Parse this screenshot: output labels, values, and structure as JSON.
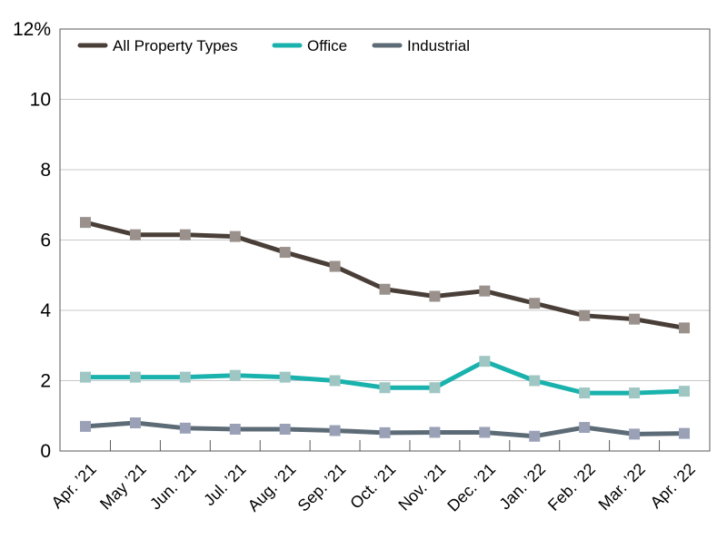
{
  "chart_data": {
    "type": "line",
    "title": "",
    "xlabel": "",
    "ylabel": "",
    "x": [
      "Apr. ’21",
      "May ’21",
      "Jun. ’21",
      "Jul. ’21",
      "Aug. ’21",
      "Sep. ’21",
      "Oct. ’21",
      "Nov. ’21",
      "Dec. ’21",
      "Jan. ’22",
      "Feb. ’22",
      "Mar. ’22",
      "Apr. ’22"
    ],
    "ylim": [
      0,
      12
    ],
    "yticks": [
      0,
      2,
      4,
      6,
      8,
      10,
      12
    ],
    "ytick_labels": [
      "0",
      "2",
      "4",
      "6",
      "8",
      "10",
      "12%"
    ],
    "grid": "horizontal",
    "legend_position": "top-left",
    "series": [
      {
        "name": "All Property Types",
        "color": "#4a3f38",
        "marker_color": "#9a918c",
        "values": [
          6.5,
          6.15,
          6.15,
          6.1,
          5.65,
          5.25,
          4.6,
          4.4,
          4.55,
          4.2,
          3.85,
          3.75,
          3.5
        ]
      },
      {
        "name": "Office",
        "color": "#1ab2ad",
        "marker_color": "#9fc6c3",
        "values": [
          2.1,
          2.1,
          2.1,
          2.15,
          2.1,
          2.0,
          1.8,
          1.8,
          2.55,
          2.0,
          1.65,
          1.65,
          1.7
        ]
      },
      {
        "name": "Industrial",
        "color": "#5c6b76",
        "marker_color": "#9aa1b6",
        "values": [
          0.7,
          0.8,
          0.65,
          0.62,
          0.62,
          0.58,
          0.52,
          0.53,
          0.53,
          0.42,
          0.67,
          0.48,
          0.5
        ]
      }
    ]
  }
}
